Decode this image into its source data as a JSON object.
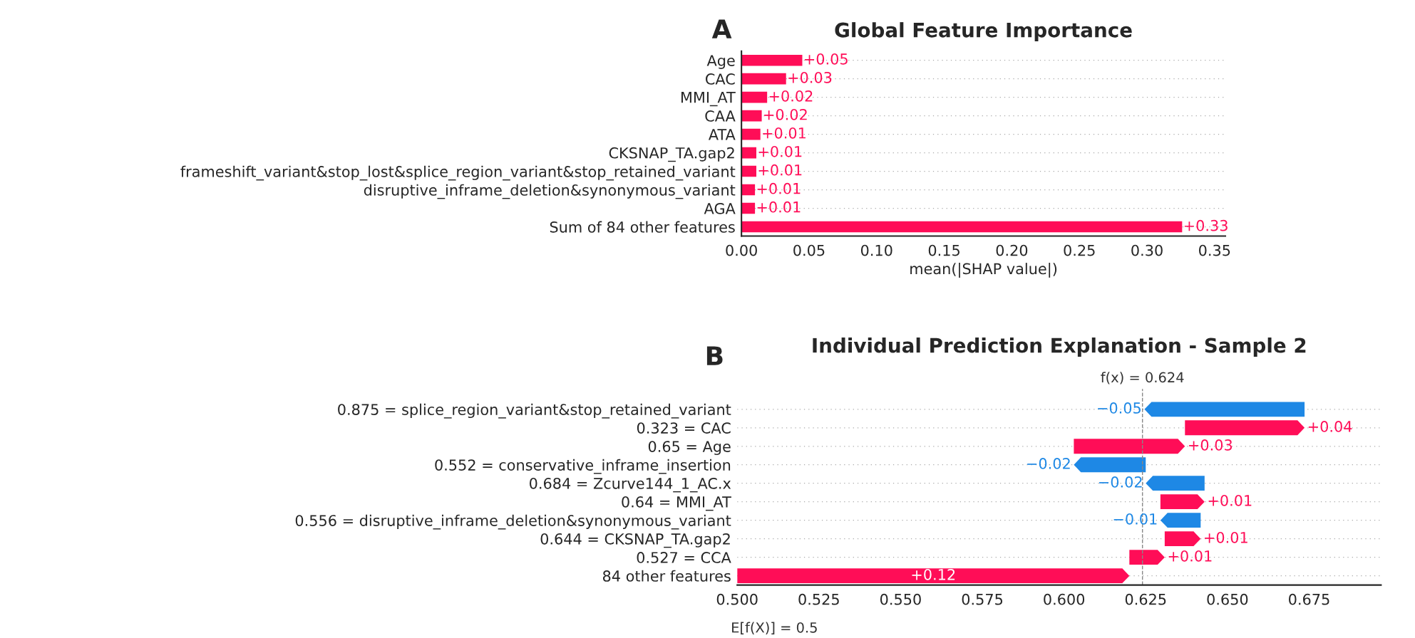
{
  "chart_data": [
    {
      "type": "bar",
      "orientation": "horizontal",
      "title": "Global Feature Importance",
      "xlabel": "mean(|SHAP value|)",
      "annotations": [
        "A"
      ],
      "categories": [
        "Age",
        "CAC",
        "MMI_AT",
        "CAA",
        "ATA",
        "CKSNAP_TA.gap2",
        "frameshift_variant&stop_lost&splice_region_variant&stop_retained_variant",
        "disruptive_inframe_deletion&synonymous_variant",
        "AGA",
        "Sum of 84 other features"
      ],
      "values": [
        0.045,
        0.033,
        0.019,
        0.015,
        0.014,
        0.011,
        0.011,
        0.01,
        0.01,
        0.326
      ],
      "value_labels": [
        "+0.05",
        "+0.03",
        "+0.02",
        "+0.02",
        "+0.01",
        "+0.01",
        "+0.01",
        "+0.01",
        "+0.01",
        "+0.33"
      ],
      "color": "#ff0d57",
      "xlim": [
        0,
        0.358
      ],
      "xticks": [
        {
          "value": 0,
          "label": "0.00"
        },
        0.05,
        {
          "value": 0.1,
          "label": "0.10"
        },
        0.15,
        {
          "value": 0.2,
          "label": "0.20"
        },
        0.25,
        {
          "value": 0.3,
          "label": "0.30"
        },
        0.35
      ],
      "grid": "y"
    },
    {
      "type": "bar",
      "orientation": "horizontal",
      "title": "Individual Prediction Explanation - Sample 2",
      "annotations": [
        "B",
        "E[f(X)] = 0.5"
      ],
      "categories": [
        "0.875 = splice_region_variant&stop_retained_variant",
        "0.323 = CAC",
        "0.65 = Age",
        "0.552 = conservative_inframe_insertion",
        "0.684 = Zcurve144_1_AC.x",
        "0.64 = MMI_AT",
        "0.556 = disruptive_inframe_deletion&synonymous_variant",
        "0.644 = CKSNAP_TA.gap2",
        "0.527 = CCA",
        "84 other features"
      ],
      "base": [
        0.6736,
        0.637,
        0.603,
        0.625,
        0.643,
        0.6295,
        0.6418,
        0.6308,
        0.62,
        0.5
      ],
      "values": [
        -0.049,
        0.0366,
        0.034,
        -0.022,
        -0.018,
        0.0135,
        -0.0123,
        0.011,
        0.0108,
        0.12
      ],
      "colors": [
        "#1e88e5",
        "#ff0d57",
        "#ff0d57",
        "#1e88e5",
        "#1e88e5",
        "#ff0d57",
        "#1e88e5",
        "#ff0d57",
        "#ff0d57",
        "#ff0d57"
      ],
      "value_labels": [
        "−0.05",
        "+0.04",
        "+0.03",
        "−0.02",
        "−0.02",
        "+0.01",
        "−0.01",
        "+0.01",
        "+0.01",
        "+0.12"
      ],
      "xlim": [
        0.5,
        0.697
      ],
      "xticks": [
        {
          "value": 0.5,
          "label": "0.500"
        },
        0.525,
        {
          "value": 0.55,
          "label": "0.550"
        },
        0.575,
        {
          "value": 0.6,
          "label": "0.600"
        },
        0.625,
        {
          "value": 0.65,
          "label": "0.650"
        },
        0.675
      ],
      "ref_lines": [
        {
          "axis": "x",
          "value": 0.624,
          "label": "f(x) = 0.624",
          "line_style": "dashed",
          "color": "#888888"
        }
      ],
      "grid": "y"
    }
  ]
}
